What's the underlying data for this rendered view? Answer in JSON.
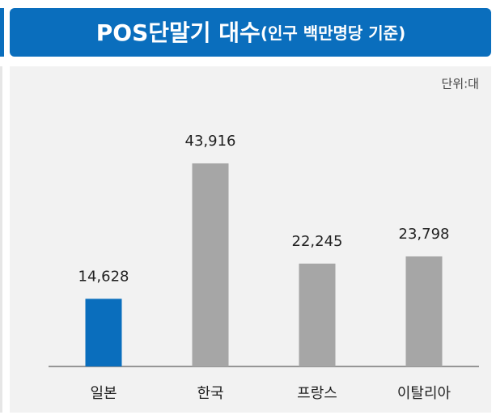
{
  "chart_data": {
    "type": "bar",
    "title": "POS단말기 대수",
    "title_note": "(인구 백만명당 기준)",
    "unit": "단위:대",
    "categories": [
      "일본",
      "한국",
      "프랑스",
      "이탈리아"
    ],
    "values": [
      14628,
      43916,
      22245,
      23798
    ],
    "value_labels": [
      "14,628",
      "43,916",
      "22,245",
      "23,798"
    ],
    "colors": [
      "#0a6ebd",
      "#a6a6a6",
      "#a6a6a6",
      "#a6a6a6"
    ],
    "ylim": [
      0,
      60000
    ]
  }
}
